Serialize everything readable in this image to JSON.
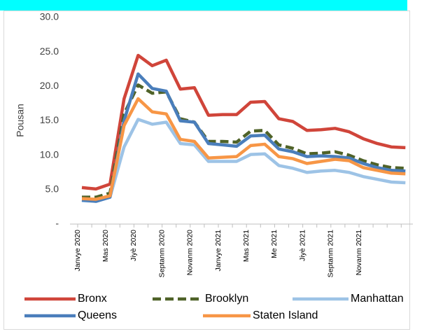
{
  "chart_data": {
    "type": "line",
    "y_label": "Pousan",
    "categories": [
      "Janvye 2020",
      null,
      "Mas 2020",
      null,
      "Jiyè 2020",
      null,
      "Septanm 2020",
      null,
      "Novanm 2020",
      null,
      "Janvye 2021",
      null,
      "Mas 2021",
      null,
      "Me 2021",
      null,
      "Jiyè 2021",
      null,
      "Septanm 2021",
      null,
      "Novanm 2021",
      null,
      null,
      null
    ],
    "series": [
      {
        "name": "Bronx",
        "color": "#d0453a",
        "dashed": false,
        "values": [
          5.3,
          5.1,
          5.8,
          18.2,
          24.5,
          23.0,
          23.8,
          19.6,
          19.8,
          15.8,
          15.9,
          15.9,
          17.7,
          17.8,
          15.3,
          14.9,
          13.6,
          13.7,
          13.9,
          13.4,
          12.4,
          11.7,
          11.2,
          11.1
        ]
      },
      {
        "name": "Brooklyn",
        "color": "#4f6228",
        "dashed": true,
        "values": [
          3.9,
          3.9,
          4.5,
          16.0,
          20.2,
          19.0,
          19.2,
          15.3,
          14.8,
          12.0,
          12.0,
          11.9,
          13.5,
          13.6,
          11.5,
          11.0,
          10.2,
          10.3,
          10.5,
          10.0,
          9.2,
          8.6,
          8.2,
          8.1
        ]
      },
      {
        "name": "Manhattan",
        "color": "#9dc3e6",
        "dashed": false,
        "values": [
          3.4,
          3.3,
          3.9,
          11.2,
          15.2,
          14.5,
          14.8,
          11.7,
          11.5,
          9.1,
          9.1,
          9.1,
          10.1,
          10.2,
          8.5,
          8.1,
          7.5,
          7.7,
          7.8,
          7.5,
          6.9,
          6.5,
          6.1,
          6.0
        ]
      },
      {
        "name": "Queens",
        "color": "#4a7ebb",
        "dashed": false,
        "values": [
          3.5,
          3.3,
          3.9,
          15.0,
          21.8,
          19.7,
          19.3,
          15.0,
          14.8,
          11.7,
          11.5,
          11.3,
          12.8,
          12.9,
          10.9,
          10.5,
          9.8,
          9.9,
          9.8,
          9.6,
          8.8,
          8.2,
          7.8,
          7.7
        ]
      },
      {
        "name": "Staten Island",
        "color": "#f79646",
        "dashed": false,
        "values": [
          3.7,
          3.6,
          4.1,
          14.3,
          18.2,
          16.3,
          16.0,
          12.3,
          12.0,
          9.6,
          9.7,
          9.8,
          11.4,
          11.6,
          9.8,
          9.5,
          8.8,
          9.1,
          9.4,
          9.2,
          8.2,
          7.8,
          7.4,
          7.3
        ]
      }
    ],
    "ylim": [
      0,
      30
    ],
    "yticks": [
      {
        "value": 0,
        "label": "-"
      },
      {
        "value": 5,
        "label": "5.0"
      },
      {
        "value": 10,
        "label": "10.0"
      },
      {
        "value": 15,
        "label": "15.0"
      },
      {
        "value": 20,
        "label": "20.0"
      },
      {
        "value": 25,
        "label": "25.0"
      },
      {
        "value": 30,
        "label": "30.0"
      }
    ],
    "grid": false,
    "legend": "bottom"
  }
}
